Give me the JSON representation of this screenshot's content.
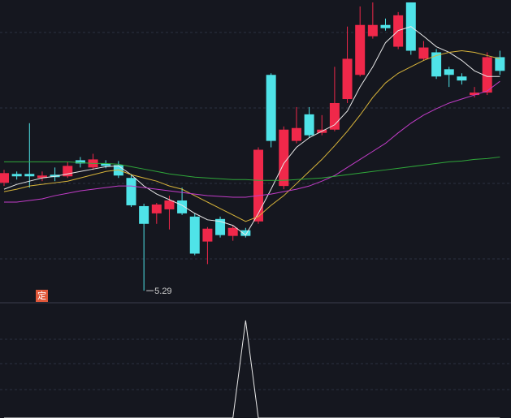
{
  "chart_data": [
    {
      "type": "candlestick",
      "ylim": [
        5.15,
        8.9
      ],
      "grid": true,
      "up_color": "#f0284a",
      "down_color": "#4fe3e8",
      "badge": "定",
      "open": [
        6.63,
        6.74,
        6.74,
        6.69,
        6.73,
        6.71,
        6.91,
        6.82,
        6.87,
        6.85,
        6.69,
        6.34,
        6.25,
        6.3,
        6.41,
        6.21,
        5.9,
        6.18,
        5.97,
        6.04,
        6.15,
        7.97,
        6.59,
        7.15,
        7.48,
        7.25,
        7.29,
        7.67,
        7.97,
        8.45,
        8.59,
        8.32,
        8.87,
        8.17,
        8.25,
        8.04,
        7.95,
        7.72,
        7.75,
        8.19
      ],
      "high": [
        6.79,
        6.77,
        7.37,
        6.77,
        6.82,
        6.89,
        6.95,
        6.99,
        6.91,
        6.9,
        6.74,
        6.37,
        6.38,
        6.47,
        6.57,
        6.25,
        6.08,
        6.21,
        6.1,
        6.07,
        7.07,
        7.99,
        7.33,
        7.57,
        7.57,
        7.47,
        8.07,
        8.57,
        8.82,
        8.87,
        8.67,
        8.75,
        8.87,
        8.39,
        8.29,
        8.07,
        7.99,
        7.82,
        8.25,
        8.27
      ],
      "low": [
        6.59,
        6.67,
        6.57,
        6.65,
        6.65,
        6.69,
        6.82,
        6.79,
        6.81,
        6.69,
        6.33,
        5.29,
        6.12,
        6.05,
        6.23,
        5.73,
        5.62,
        5.95,
        5.91,
        5.95,
        6.12,
        7.07,
        6.55,
        7.12,
        7.19,
        7.22,
        7.27,
        7.62,
        7.95,
        8.42,
        8.52,
        8.29,
        8.22,
        8.15,
        7.92,
        7.82,
        7.85,
        7.69,
        7.72,
        7.97
      ],
      "close": [
        6.75,
        6.71,
        6.71,
        6.72,
        6.7,
        6.84,
        6.87,
        6.92,
        6.84,
        6.72,
        6.35,
        6.12,
        6.36,
        6.41,
        6.25,
        5.75,
        6.06,
        5.98,
        6.07,
        5.97,
        7.04,
        7.15,
        7.29,
        7.31,
        7.22,
        7.29,
        7.62,
        8.17,
        8.59,
        8.59,
        8.55,
        8.71,
        8.27,
        8.31,
        7.95,
        7.97,
        7.9,
        7.75,
        8.19,
        8.02
      ],
      "series": [
        {
          "color": "#e8e8e8",
          "values": [
            6.55,
            6.61,
            6.65,
            6.69,
            6.71,
            6.74,
            6.77,
            6.8,
            6.83,
            6.84,
            6.73,
            6.59,
            6.49,
            6.42,
            6.35,
            6.25,
            6.17,
            6.15,
            6.1,
            5.98,
            6.25,
            6.55,
            6.87,
            7.07,
            7.19,
            7.27,
            7.35,
            7.52,
            7.82,
            8.07,
            8.37,
            8.52,
            8.57,
            8.45,
            8.32,
            8.25,
            8.15,
            8.02,
            7.95,
            7.95
          ]
        },
        {
          "color": "#d9b53a",
          "values": [
            6.52,
            6.55,
            6.59,
            6.61,
            6.63,
            6.65,
            6.69,
            6.73,
            6.77,
            6.79,
            6.73,
            6.69,
            6.65,
            6.59,
            6.55,
            6.47,
            6.39,
            6.31,
            6.23,
            6.15,
            6.21,
            6.35,
            6.47,
            6.62,
            6.77,
            6.92,
            7.09,
            7.27,
            7.47,
            7.69,
            7.87,
            7.99,
            8.07,
            8.15,
            8.21,
            8.25,
            8.27,
            8.25,
            8.21,
            8.17
          ]
        },
        {
          "color": "#c23cc8",
          "values": [
            6.39,
            6.39,
            6.41,
            6.43,
            6.47,
            6.5,
            6.53,
            6.55,
            6.57,
            6.59,
            6.59,
            6.57,
            6.55,
            6.53,
            6.51,
            6.49,
            6.47,
            6.46,
            6.45,
            6.45,
            6.47,
            6.49,
            6.52,
            6.55,
            6.59,
            6.65,
            6.72,
            6.82,
            6.92,
            7.02,
            7.12,
            7.25,
            7.37,
            7.47,
            7.55,
            7.62,
            7.67,
            7.72,
            7.77,
            7.89
          ]
        },
        {
          "color": "#2fa83a",
          "values": [
            6.89,
            6.89,
            6.89,
            6.89,
            6.89,
            6.89,
            6.88,
            6.87,
            6.87,
            6.86,
            6.83,
            6.8,
            6.77,
            6.74,
            6.72,
            6.7,
            6.69,
            6.68,
            6.67,
            6.67,
            6.66,
            6.66,
            6.66,
            6.67,
            6.68,
            6.69,
            6.71,
            6.73,
            6.75,
            6.77,
            6.79,
            6.81,
            6.83,
            6.85,
            6.87,
            6.89,
            6.9,
            6.92,
            6.93,
            6.95
          ]
        }
      ]
    },
    {
      "type": "line",
      "ylim": [
        0,
        1
      ],
      "color": "#e8e8e8",
      "values": [
        0,
        0,
        0,
        0,
        0,
        0,
        0,
        0,
        0,
        0,
        0,
        0,
        0,
        0,
        0,
        0,
        0,
        0,
        0,
        0.89,
        0,
        0,
        0,
        0,
        0,
        0,
        0,
        0,
        0,
        0,
        0,
        0,
        0,
        0,
        0,
        0,
        0,
        0,
        0,
        0
      ]
    }
  ]
}
